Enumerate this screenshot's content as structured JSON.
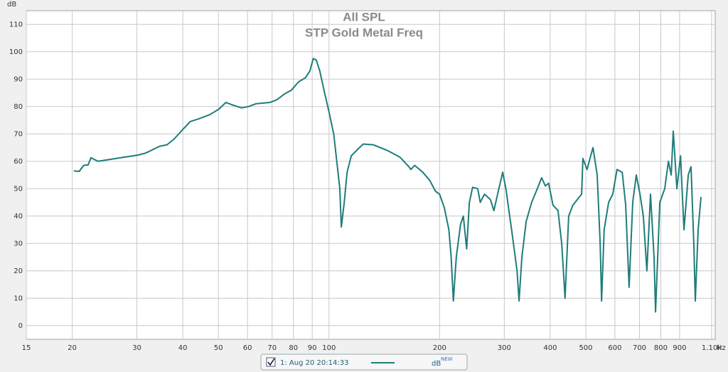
{
  "chart_data": {
    "type": "line",
    "title": "All SPL",
    "subtitle": "STP Gold Metal Freq",
    "y_label": "dB",
    "x_label": "Hz",
    "x_scale": "log",
    "grid": true,
    "xlim": [
      15,
      1125
    ],
    "ylim": [
      -5,
      115
    ],
    "xticks": [
      15,
      20,
      30,
      40,
      50,
      60,
      70,
      80,
      90,
      100,
      200,
      300,
      400,
      500,
      600,
      700,
      800,
      900,
      {
        "value": 1100,
        "label": "1.10k"
      }
    ],
    "yticks": [
      0,
      10,
      20,
      30,
      40,
      50,
      60,
      70,
      80,
      90,
      100,
      110
    ],
    "x": [
      20.2,
      20.9,
      21.5,
      22.1,
      22.5,
      23.5,
      30.3,
      31.7,
      34.6,
      36.2,
      37.8,
      39.6,
      41.9,
      44.2,
      47.3,
      50.1,
      52.4,
      54.8,
      57.8,
      60.4,
      63.2,
      69.1,
      72.2,
      75.5,
      79.0,
      82.6,
      86.3,
      88.7,
      90.6,
      92.3,
      94.4,
      96.9,
      100,
      103,
      105,
      107,
      108,
      110,
      112,
      115,
      121,
      124,
      132,
      144,
      156,
      165,
      167,
      171,
      180,
      188,
      195,
      200,
      206,
      212,
      215,
      218,
      222,
      228,
      232,
      237,
      241,
      246,
      254,
      258,
      265,
      275,
      281,
      290,
      297,
      303,
      314,
      325,
      329,
      335,
      344,
      356,
      369,
      379,
      388,
      396,
      407,
      420,
      430,
      439,
      449,
      461,
      474,
      487,
      491,
      504,
      513,
      523,
      537,
      547,
      552,
      561,
      577,
      592,
      608,
      628,
      642,
      656,
      671,
      686,
      702,
      717,
      733,
      750,
      767,
      774,
      795,
      820,
      839,
      854,
      865,
      885,
      905,
      925,
      950,
      967,
      984,
      993,
      1011,
      1029
    ],
    "series": [
      {
        "name": "1: Aug 20 20:14:33",
        "color": "#1e7d7a",
        "values": [
          56.5,
          56.3,
          58.5,
          58.7,
          61.3,
          60,
          62.3,
          63,
          65.5,
          66,
          68,
          71,
          74.5,
          75.5,
          77,
          79,
          81.5,
          80.5,
          79.5,
          80,
          81,
          81.5,
          82.5,
          84.5,
          86,
          89,
          90.5,
          93,
          97.5,
          97,
          93,
          86,
          78,
          70,
          60,
          50,
          36,
          45,
          56,
          62,
          65,
          66.3,
          66,
          64,
          61.5,
          58,
          57,
          58.5,
          56,
          53,
          49,
          48,
          43,
          35,
          25,
          9,
          25,
          37,
          40,
          28,
          45,
          50.5,
          50,
          45,
          48,
          46,
          42,
          50,
          56,
          50,
          35,
          20,
          9,
          25,
          38,
          45,
          50,
          54,
          51,
          52,
          44,
          42,
          30,
          10,
          40,
          44,
          46,
          48,
          61,
          57,
          61,
          65,
          55,
          30,
          9,
          35,
          45,
          48,
          57,
          56,
          44,
          14,
          45,
          55,
          48,
          40,
          20,
          48,
          25,
          5,
          45,
          50,
          60,
          55,
          71,
          50,
          62,
          35,
          55,
          58,
          30,
          9,
          35,
          47
        ]
      }
    ],
    "legend_unit": "dB",
    "legend_unit_sup": "NEW"
  }
}
